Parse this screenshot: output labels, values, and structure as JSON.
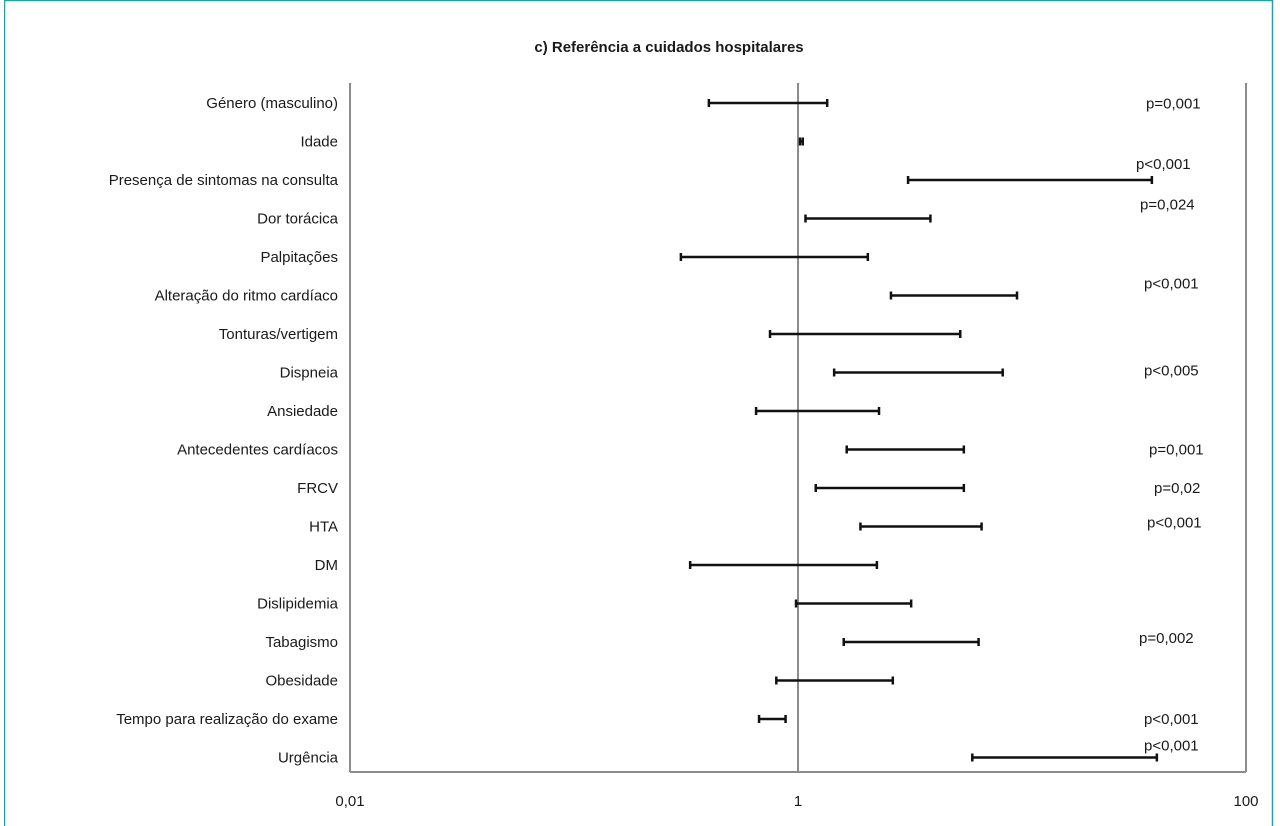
{
  "chart_data": {
    "type": "forest",
    "title": "c) Referência a cuidados hospitalares",
    "xscale": "log",
    "xlim": [
      0.01,
      100
    ],
    "xticks": [
      {
        "value": 0.01,
        "label": "0,01"
      },
      {
        "value": 1,
        "label": "1"
      },
      {
        "value": 100,
        "label": "100"
      }
    ],
    "reference_line": 1,
    "grid": false,
    "categories": [
      "Género (masculino)",
      "Idade",
      "Presença de sintomas na consulta",
      "Dor torácica",
      "Palpitações",
      "Alteração do ritmo cardíaco",
      "Tonturas/vertigem",
      "Dispneia",
      "Ansiedade",
      "Antecedentes cardíacos",
      "FRCV",
      "HTA",
      "DM",
      "Dislipidemia",
      "Tabagismo",
      "Obesidade",
      "Tempo para realização do exame",
      "Urgência"
    ],
    "ci_low": [
      0.4,
      1.02,
      3.1,
      1.08,
      0.3,
      2.6,
      0.75,
      1.45,
      0.65,
      1.65,
      1.2,
      1.9,
      0.33,
      0.98,
      1.6,
      0.8,
      0.67,
      6.0
    ],
    "ci_high": [
      1.35,
      1.05,
      38.0,
      3.9,
      2.05,
      9.5,
      5.3,
      8.2,
      2.3,
      5.5,
      5.5,
      6.6,
      2.25,
      3.2,
      6.4,
      2.65,
      0.88,
      40.0
    ],
    "p_values": [
      {
        "category": "Idade",
        "label": "p=0,001"
      },
      {
        "category": "Presença de sintomas na consulta",
        "label": "p<0,001"
      },
      {
        "category": "Dor torácica",
        "label": "p=0,024"
      },
      {
        "category": "Alteração do ritmo cardíaco",
        "label": "p<0,001"
      },
      {
        "category": "Dispneia",
        "label": "p<0,005"
      },
      {
        "category": "Antecedentes cardíacos",
        "label": "p=0,001"
      },
      {
        "category": "FRCV",
        "label": "p=0,02"
      },
      {
        "category": "HTA",
        "label": "p<0,001"
      },
      {
        "category": "Tabagismo",
        "label": "p=0,002"
      },
      {
        "category": "Tempo para realização do exame",
        "label": "p<0,001"
      },
      {
        "category": "Urgência",
        "label": "p<0,001"
      }
    ],
    "colors": {
      "frame": "#2a9d9d",
      "axis": "#8c8c8c",
      "bar": "#111111",
      "text": "#1a1a1a"
    }
  }
}
